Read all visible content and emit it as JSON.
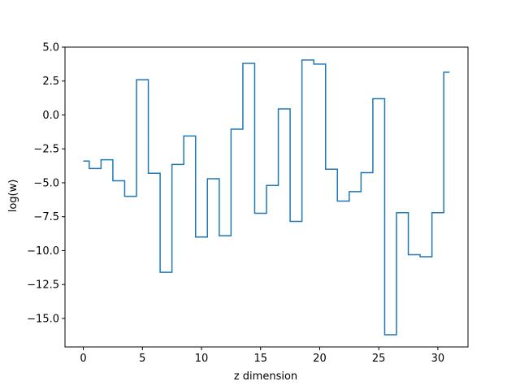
{
  "chart_data": {
    "type": "line",
    "drawstyle": "steps-mid",
    "title": "",
    "xlabel": "z dimension",
    "ylabel": "log(w)",
    "xlim": [
      -1.55,
      32.55
    ],
    "ylim": [
      -17.1,
      5.0
    ],
    "xticks": [
      0,
      5,
      10,
      15,
      20,
      25,
      30
    ],
    "xtick_labels": [
      "0",
      "5",
      "10",
      "15",
      "20",
      "25",
      "30"
    ],
    "yticks": [
      5.0,
      2.5,
      0.0,
      -2.5,
      -5.0,
      -7.5,
      -10.0,
      -12.5,
      -15.0
    ],
    "ytick_labels": [
      "5.0",
      "2.5",
      "0.0",
      "−2.5",
      "−5.0",
      "−7.5",
      "−10.0",
      "−12.5",
      "−15.0"
    ],
    "grid": false,
    "series": [
      {
        "color": "#1f77b4",
        "x": [
          0,
          1,
          2,
          3,
          4,
          5,
          6,
          7,
          8,
          9,
          10,
          11,
          12,
          13,
          14,
          15,
          16,
          17,
          18,
          19,
          20,
          21,
          22,
          23,
          24,
          25,
          26,
          27,
          28,
          29,
          30,
          31
        ],
        "values": [
          -3.4,
          -3.95,
          -3.3,
          -4.85,
          -6.0,
          2.6,
          -4.3,
          -11.6,
          -3.65,
          -1.55,
          -9.0,
          -4.7,
          -8.9,
          -1.05,
          3.8,
          -7.25,
          -5.2,
          0.45,
          -7.85,
          4.05,
          3.75,
          -4.0,
          -6.35,
          -5.65,
          -4.25,
          1.2,
          -16.2,
          -7.2,
          -10.3,
          -10.45,
          -7.2,
          3.15
        ]
      }
    ]
  }
}
